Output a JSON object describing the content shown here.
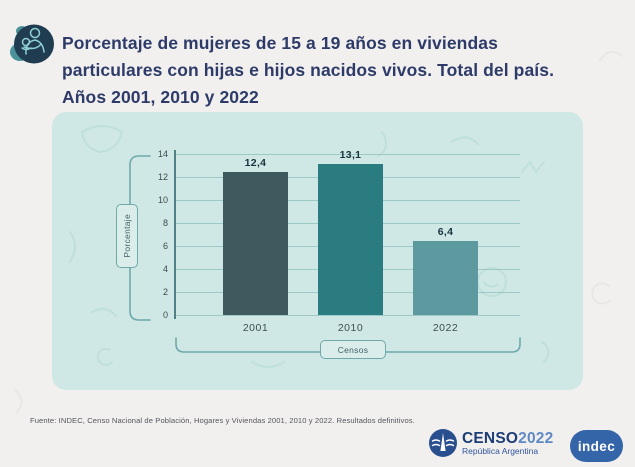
{
  "header": {
    "icon": "mother-and-child-icon",
    "title_lines": [
      "Porcentaje de mujeres de 15 a 19 años en viviendas",
      "particulares con hijas e hijos nacidos vivos. Total del país.",
      "Años 2001, 2010 y 2022"
    ]
  },
  "chart_data": {
    "type": "bar",
    "title": "Porcentaje de mujeres de 15 a 19 años en viviendas particulares con hijas e hijos nacidos vivos. Total del país. Años 2001, 2010 y 2022",
    "categories": [
      "2001",
      "2010",
      "2022"
    ],
    "values": [
      12.4,
      13.1,
      6.4
    ],
    "value_labels": [
      "12,4",
      "13,1",
      "6,4"
    ],
    "xlabel": "Censos",
    "ylabel": "Porcentaje",
    "ylim": [
      0,
      14
    ],
    "yticks": [
      0,
      2,
      4,
      6,
      8,
      10,
      12,
      14
    ],
    "grid": true,
    "legend": "none",
    "bar_colors": [
      "#3f5a5e",
      "#2a7c80",
      "#5d9aa0"
    ],
    "panel_bg": "#cfe7e5"
  },
  "footer": {
    "source": "Fuente: INDEC, Censo Nacional de Población, Hogares y Viviendas 2001, 2010 y 2022. Resultados definitivos.",
    "censo_logo": {
      "word": "CENSO",
      "year": "2022",
      "subtitle": "República Argentina"
    },
    "indec_logo": "indec"
  },
  "colors": {
    "page_bg": "#f1f0ee",
    "panel_bg": "#cfe7e5",
    "title_text": "#2e3b69",
    "axis_line": "#4f8184",
    "gridline": "#8ebfbf",
    "bracket": "#6fa9ab",
    "censo_blue_dark": "#1d3d76",
    "censo_blue_light": "#6089c4",
    "indec_blue": "#3465a8"
  }
}
